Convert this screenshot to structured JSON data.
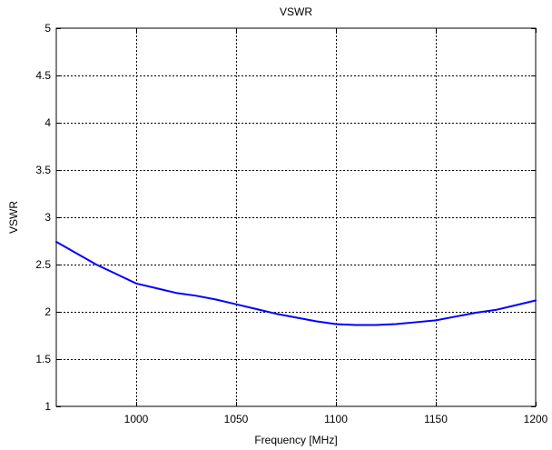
{
  "chart_data": {
    "type": "line",
    "title": "VSWR",
    "xlabel": "Frequency [MHz]",
    "ylabel": "VSWR",
    "xlim": [
      960,
      1200
    ],
    "ylim": [
      1,
      5
    ],
    "xticks": [
      1000,
      1050,
      1100,
      1150,
      1200
    ],
    "xtick_labels": [
      "1000",
      "1050",
      "1100",
      "1150",
      "1200"
    ],
    "yticks": [
      1,
      1.5,
      2,
      2.5,
      3,
      3.5,
      4,
      4.5,
      5
    ],
    "ytick_labels": [
      "1",
      "1.5",
      "2",
      "2.5",
      "3",
      "3.5",
      "4",
      "4.5",
      "5"
    ],
    "grid": true,
    "series": [
      {
        "color": "#0000ff",
        "x": [
          960,
          970,
          980,
          990,
          1000,
          1010,
          1020,
          1030,
          1040,
          1050,
          1060,
          1070,
          1080,
          1090,
          1100,
          1110,
          1120,
          1130,
          1140,
          1150,
          1160,
          1170,
          1180,
          1190,
          1200
        ],
        "y": [
          2.74,
          2.62,
          2.5,
          2.4,
          2.3,
          2.25,
          2.2,
          2.17,
          2.13,
          2.08,
          2.03,
          1.98,
          1.94,
          1.9,
          1.87,
          1.86,
          1.86,
          1.87,
          1.89,
          1.91,
          1.95,
          1.99,
          2.02,
          2.07,
          2.12
        ]
      }
    ]
  }
}
